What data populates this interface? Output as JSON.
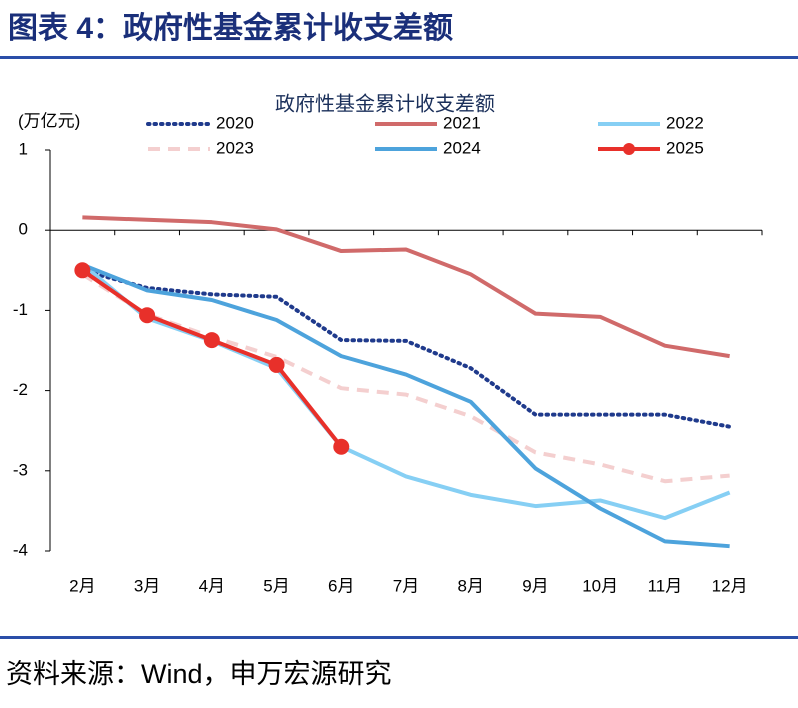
{
  "header": {
    "title": "图表 4：政府性基金累计收支差额"
  },
  "chart_data": {
    "type": "line",
    "title": "政府性基金累计收支差额",
    "y_label": "(万亿元)",
    "categories": [
      "2月",
      "3月",
      "4月",
      "5月",
      "6月",
      "7月",
      "8月",
      "9月",
      "10月",
      "11月",
      "12月"
    ],
    "series": [
      {
        "name": "2020",
        "color": "#1f3a8c",
        "dash": "dotted",
        "values": [
          -0.5,
          -0.72,
          -0.8,
          -0.83,
          -1.37,
          -1.38,
          -1.72,
          -2.3,
          -2.3,
          -2.3,
          -2.45
        ]
      },
      {
        "name": "2021",
        "color": "#d06a6a",
        "dash": "solid",
        "values": [
          0.16,
          0.13,
          0.1,
          0.01,
          -0.26,
          -0.24,
          -0.55,
          -1.04,
          -1.08,
          -1.44,
          -1.57
        ]
      },
      {
        "name": "2022",
        "color": "#86cff4",
        "dash": "solid",
        "values": [
          -0.42,
          -1.1,
          -1.38,
          -1.72,
          -2.7,
          -3.07,
          -3.3,
          -3.44,
          -3.37,
          -3.59,
          -3.27
        ]
      },
      {
        "name": "2023",
        "color": "#f4cfcf",
        "dash": "dashed",
        "values": [
          -0.55,
          -1.05,
          -1.33,
          -1.58,
          -1.97,
          -2.05,
          -2.32,
          -2.77,
          -2.92,
          -3.13,
          -3.06
        ]
      },
      {
        "name": "2024",
        "color": "#4da3dc",
        "dash": "solid",
        "values": [
          -0.43,
          -0.75,
          -0.87,
          -1.12,
          -1.57,
          -1.8,
          -2.14,
          -2.97,
          -3.47,
          -3.88,
          -3.94
        ]
      },
      {
        "name": "2025",
        "color": "#e8302a",
        "dash": "solid",
        "marker": true,
        "values": [
          -0.5,
          -1.06,
          -1.37,
          -1.68,
          -2.7,
          null,
          null,
          null,
          null,
          null,
          null
        ]
      }
    ],
    "ylim": [
      -4,
      1
    ],
    "yticks": [
      1,
      0,
      -1,
      -2,
      -3,
      -4
    ],
    "grid": false,
    "legend": "top"
  },
  "footer": {
    "source": "资料来源：Wind，申万宏源研究"
  }
}
